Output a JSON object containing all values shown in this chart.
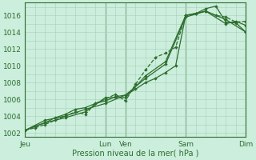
{
  "bg_color": "#cceedd",
  "grid_color": "#aaccbb",
  "line_color": "#2d6e2d",
  "xlabel": "Pression niveau de la mer( hPa )",
  "ylim": [
    1001.5,
    1017.5
  ],
  "yticks": [
    1002,
    1004,
    1006,
    1008,
    1010,
    1012,
    1014,
    1016
  ],
  "xtick_labels": [
    "Jeu",
    "Lun",
    "Ven",
    "Sam",
    "Dim"
  ],
  "xtick_positions": [
    0,
    96,
    120,
    192,
    264
  ],
  "total_hours": 264,
  "series": [
    [
      0,
      1002.3,
      12,
      1002.8,
      24,
      1003.2,
      36,
      1003.8,
      48,
      1004.2,
      60,
      1004.8,
      72,
      1005.0,
      84,
      1005.5,
      96,
      1005.8,
      108,
      1006.3,
      120,
      1006.5,
      132,
      1007.2,
      144,
      1008.0,
      156,
      1008.5,
      168,
      1009.2,
      180,
      1010.0,
      192,
      1016.0,
      204,
      1016.2,
      216,
      1016.8,
      228,
      1017.1,
      240,
      1015.2,
      252,
      1015.1,
      264,
      1014.0
    ],
    [
      0,
      1002.3,
      24,
      1003.5,
      48,
      1004.0,
      72,
      1004.8,
      96,
      1005.5,
      120,
      1006.5,
      144,
      1008.5,
      168,
      1010.2,
      192,
      1015.8,
      216,
      1016.5,
      240,
      1015.5,
      264,
      1014.0
    ],
    [
      0,
      1002.3,
      12,
      1002.6,
      24,
      1003.0,
      36,
      1003.5,
      48,
      1004.0,
      60,
      1004.5,
      72,
      1004.2,
      84,
      1005.5,
      96,
      1006.0,
      108,
      1006.6,
      120,
      1005.8,
      132,
      1007.8,
      144,
      1009.5,
      156,
      1011.0,
      168,
      1011.5,
      180,
      1012.2,
      192,
      1016.0,
      204,
      1016.2,
      216,
      1016.5,
      228,
      1016.0,
      240,
      1015.8,
      252,
      1015.2,
      264,
      1015.3
    ],
    [
      0,
      1002.3,
      24,
      1003.2,
      48,
      1003.8,
      72,
      1004.5,
      96,
      1006.2,
      120,
      1006.2,
      144,
      1008.8,
      168,
      1010.5,
      192,
      1016.0,
      216,
      1016.5,
      240,
      1015.0,
      252,
      1015.3,
      264,
      1014.8
    ]
  ]
}
